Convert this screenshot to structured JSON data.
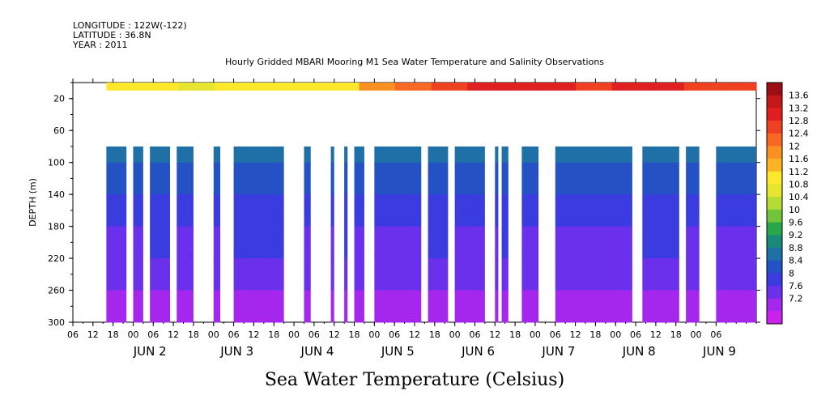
{
  "header": {
    "longitude": "LONGITUDE : 122W(-122)",
    "latitude": "LATITUDE : 36.8N",
    "year": "YEAR : 2011"
  },
  "chart_data": {
    "type": "heatmap",
    "title": "Hourly Gridded MBARI Mooring M1 Sea Water Temperature and Salinity Observations",
    "xlabel": "Sea Water Temperature (Celsius)",
    "ylabel": "DEPTH (m)",
    "ylim": [
      300,
      0
    ],
    "y_ticks": [
      20,
      60,
      100,
      140,
      180,
      220,
      260,
      300
    ],
    "x_ticks_hours": [
      "06",
      "12",
      "18",
      "00",
      "06",
      "12",
      "18",
      "00",
      "06",
      "12",
      "18",
      "00",
      "06",
      "12",
      "18",
      "00",
      "06",
      "12",
      "18",
      "00",
      "06",
      "12",
      "18",
      "00",
      "06",
      "12",
      "18",
      "00",
      "06",
      "12",
      "18",
      "00",
      "06"
    ],
    "day_labels": [
      "JUN  2",
      "JUN  3",
      "JUN  4",
      "JUN  5",
      "JUN  6",
      "JUN  7",
      "JUN  8",
      "JUN  9"
    ],
    "x_range_hours": [
      0,
      204
    ],
    "surface_band": {
      "depth_top": 0,
      "depth_bottom": 10,
      "start_hour": 10,
      "values": [
        11.2,
        11.0,
        10.9,
        11.0,
        11.1,
        11.0,
        11.2,
        11.8,
        12.2,
        12.4,
        12.6,
        12.8,
        12.6,
        12.4,
        12.7,
        12.9,
        12.5,
        12.4
      ]
    },
    "data_column_segments_hours": [
      [
        10,
        16
      ],
      [
        18,
        21
      ],
      [
        23,
        29
      ],
      [
        31,
        36
      ],
      [
        42,
        44
      ],
      [
        48,
        63
      ],
      [
        69,
        71
      ],
      [
        77,
        78
      ],
      [
        81,
        82
      ],
      [
        84,
        87
      ],
      [
        90,
        104
      ],
      [
        106,
        112
      ],
      [
        114,
        123
      ],
      [
        126,
        127
      ],
      [
        128,
        130
      ],
      [
        134,
        139
      ],
      [
        144,
        167
      ],
      [
        170,
        181
      ],
      [
        183,
        187
      ],
      [
        192,
        211
      ]
    ],
    "profile_depth_range": [
      80,
      300
    ],
    "typical_profile": [
      {
        "depth": 80,
        "temp": 9.1
      },
      {
        "depth": 100,
        "temp": 8.8
      },
      {
        "depth": 140,
        "temp": 8.6
      },
      {
        "depth": 180,
        "temp": 8.3
      },
      {
        "depth": 220,
        "temp": 8.1
      },
      {
        "depth": 260,
        "temp": 7.9
      },
      {
        "depth": 300,
        "temp": 7.6
      }
    ],
    "colorbar": {
      "labels": [
        "13.6",
        "13.2",
        "12.8",
        "12.4",
        "12",
        "11.6",
        "11.2",
        "10.8",
        "10.4",
        "10",
        "9.6",
        "9.2",
        "8.8",
        "8.4",
        "8",
        "7.6",
        "7.2"
      ],
      "colors": [
        "#9c0d14",
        "#c41818",
        "#e02020",
        "#f04022",
        "#f86822",
        "#fb9022",
        "#fcb424",
        "#fde82c",
        "#e6e630",
        "#b4dc34",
        "#72c43a",
        "#2aa849",
        "#1a8a78",
        "#1f70a6",
        "#2452c4",
        "#3a3ce0",
        "#6b30ec",
        "#a527ee",
        "#cc22ee"
      ]
    }
  }
}
